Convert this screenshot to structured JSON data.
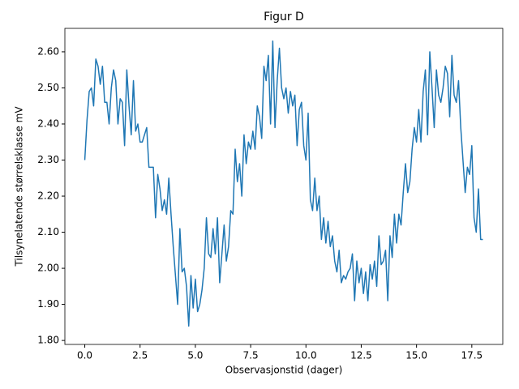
{
  "chart_data": {
    "type": "line",
    "title": "Figur D",
    "xlabel": "Observasjonstid (dager)",
    "ylabel": "Tilsynelatende størrelsklasse mV",
    "x": [
      0,
      0.1,
      0.2,
      0.3,
      0.4,
      0.5,
      0.6,
      0.7,
      0.8,
      0.9,
      1,
      1.1,
      1.2,
      1.3,
      1.4,
      1.5,
      1.6,
      1.7,
      1.8,
      1.9,
      2,
      2.1,
      2.2,
      2.3,
      2.4,
      2.5,
      2.6,
      2.7,
      2.8,
      2.9,
      3,
      3.1,
      3.2,
      3.3,
      3.4,
      3.5,
      3.6,
      3.7,
      3.8,
      3.9,
      4,
      4.1,
      4.2,
      4.3,
      4.4,
      4.5,
      4.6,
      4.7,
      4.8,
      4.9,
      5,
      5.1,
      5.2,
      5.3,
      5.4,
      5.5,
      5.6,
      5.7,
      5.8,
      5.9,
      6,
      6.1,
      6.2,
      6.3,
      6.4,
      6.5,
      6.6,
      6.7,
      6.8,
      6.9,
      7,
      7.1,
      7.2,
      7.3,
      7.4,
      7.5,
      7.6,
      7.7,
      7.8,
      7.9,
      8,
      8.1,
      8.2,
      8.3,
      8.4,
      8.5,
      8.6,
      8.7,
      8.8,
      8.9,
      9,
      9.1,
      9.2,
      9.3,
      9.4,
      9.5,
      9.6,
      9.7,
      9.8,
      9.9,
      10,
      10.1,
      10.2,
      10.3,
      10.4,
      10.5,
      10.6,
      10.7,
      10.8,
      10.9,
      11,
      11.1,
      11.2,
      11.3,
      11.4,
      11.5,
      11.6,
      11.7,
      11.8,
      11.9,
      12,
      12.1,
      12.2,
      12.3,
      12.4,
      12.5,
      12.6,
      12.7,
      12.8,
      12.9,
      13,
      13.1,
      13.2,
      13.3,
      13.4,
      13.5,
      13.6,
      13.7,
      13.8,
      13.9,
      14,
      14.1,
      14.2,
      14.3,
      14.4,
      14.5,
      14.6,
      14.7,
      14.8,
      14.9,
      15,
      15.1,
      15.2,
      15.3,
      15.4,
      15.5,
      15.6,
      15.7,
      15.8,
      15.9,
      16,
      16.1,
      16.2,
      16.3,
      16.4,
      16.5,
      16.6,
      16.7,
      16.8,
      16.9,
      17,
      17.1,
      17.2,
      17.3,
      17.4,
      17.5,
      17.6,
      17.7,
      17.8,
      17.9,
      18
    ],
    "series": [
      {
        "color": "#1f77b4",
        "values": [
          2.3,
          2.41,
          2.49,
          2.5,
          2.45,
          2.58,
          2.56,
          2.51,
          2.56,
          2.46,
          2.46,
          2.4,
          2.5,
          2.55,
          2.52,
          2.4,
          2.47,
          2.46,
          2.34,
          2.55,
          2.45,
          2.37,
          2.52,
          2.38,
          2.4,
          2.35,
          2.35,
          2.37,
          2.39,
          2.28,
          2.28,
          2.28,
          2.14,
          2.26,
          2.22,
          2.16,
          2.19,
          2.15,
          2.25,
          2.15,
          2.06,
          1.98,
          1.9,
          2.11,
          1.99,
          2.0,
          1.95,
          1.84,
          1.98,
          1.89,
          1.97,
          1.88,
          1.9,
          1.94,
          2.0,
          2.14,
          2.04,
          2.03,
          2.11,
          2.04,
          2.14,
          1.96,
          2.04,
          2.12,
          2.02,
          2.06,
          2.16,
          2.15,
          2.33,
          2.24,
          2.29,
          2.2,
          2.37,
          2.29,
          2.35,
          2.33,
          2.38,
          2.33,
          2.45,
          2.42,
          2.36,
          2.56,
          2.52,
          2.59,
          2.4,
          2.63,
          2.39,
          2.52,
          2.61,
          2.5,
          2.47,
          2.5,
          2.43,
          2.49,
          2.45,
          2.48,
          2.34,
          2.44,
          2.46,
          2.34,
          2.3,
          2.43,
          2.19,
          2.16,
          2.25,
          2.16,
          2.2,
          2.08,
          2.14,
          2.07,
          2.13,
          2.06,
          2.09,
          2.02,
          1.99,
          2.05,
          1.96,
          1.98,
          1.97,
          1.99,
          2.0,
          2.04,
          1.91,
          2.02,
          1.96,
          2.0,
          1.93,
          1.99,
          1.91,
          2.01,
          1.97,
          2.02,
          1.95,
          2.09,
          2.01,
          2.02,
          2.05,
          1.91,
          2.09,
          2.03,
          2.15,
          2.07,
          2.15,
          2.12,
          2.21,
          2.29,
          2.21,
          2.24,
          2.33,
          2.39,
          2.35,
          2.44,
          2.35,
          2.49,
          2.55,
          2.37,
          2.6,
          2.5,
          2.39,
          2.55,
          2.48,
          2.46,
          2.5,
          2.56,
          2.54,
          2.42,
          2.59,
          2.48,
          2.46,
          2.52,
          2.39,
          2.3,
          2.21,
          2.28,
          2.26,
          2.34,
          2.14,
          2.1,
          2.22,
          2.08,
          2.08
        ]
      }
    ],
    "xlim": [
      -0.9,
      18.9
    ],
    "ylim": [
      1.789,
      2.665
    ],
    "xticks": [
      {
        "value": 0,
        "label": "0.0"
      },
      {
        "value": 2.5,
        "label": "2.5"
      },
      {
        "value": 5,
        "label": "5.0"
      },
      {
        "value": 7.5,
        "label": "7.5"
      },
      {
        "value": 10,
        "label": "10.0"
      },
      {
        "value": 12.5,
        "label": "12.5"
      },
      {
        "value": 15,
        "label": "15.0"
      },
      {
        "value": 17.5,
        "label": "17.5"
      }
    ],
    "yticks": [
      {
        "value": 1.8,
        "label": "1.80"
      },
      {
        "value": 1.9,
        "label": "1.90"
      },
      {
        "value": 2,
        "label": "2.00"
      },
      {
        "value": 2.1,
        "label": "2.10"
      },
      {
        "value": 2.2,
        "label": "2.20"
      },
      {
        "value": 2.3,
        "label": "2.30"
      },
      {
        "value": 2.4,
        "label": "2.40"
      },
      {
        "value": 2.5,
        "label": "2.50"
      },
      {
        "value": 2.6,
        "label": "2.60"
      }
    ]
  }
}
